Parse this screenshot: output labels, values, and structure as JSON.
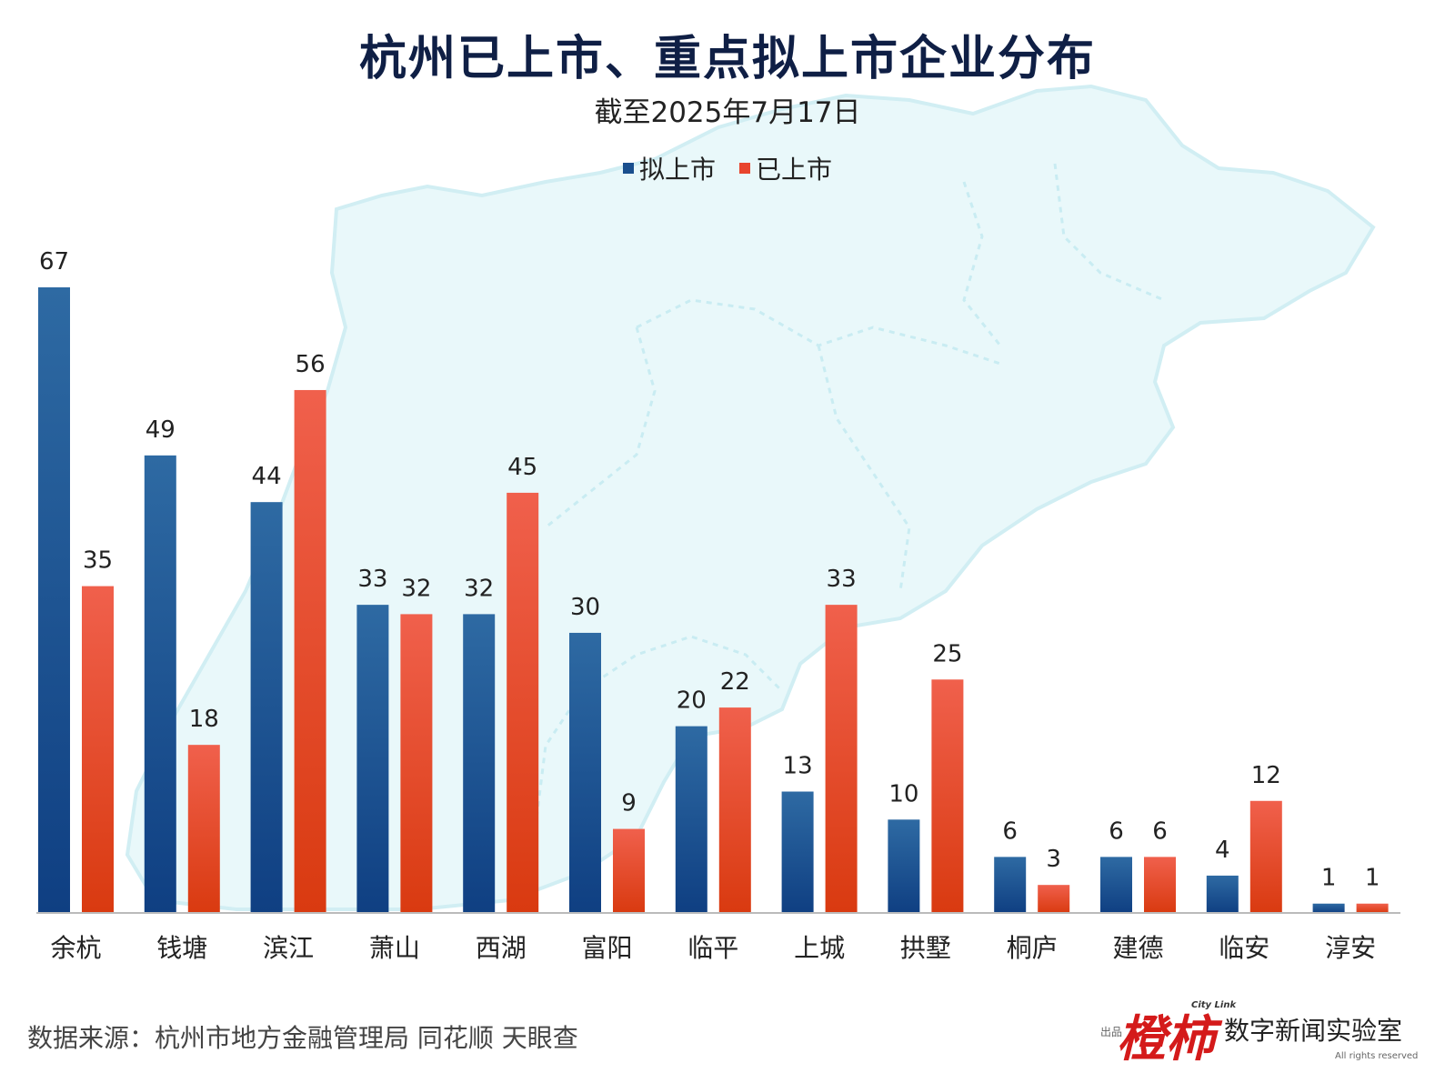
{
  "colors": {
    "planned": "#1a4f8e",
    "listed": "#e8452e",
    "map": "#e6f7fa",
    "map_border": "#c9ecf2",
    "title": "#0f1f45"
  },
  "legend": {
    "planned_label": "拟上市",
    "listed_label": "已上市"
  },
  "source_text": "数据来源：杭州市地方金融管理局 同花顺 天眼查",
  "brand": {
    "publisher_small": "出品",
    "logo_text": "橙柿",
    "citylink": "City Link",
    "lab_name": "数字新闻实验室",
    "rights": "All rights reserved"
  },
  "chart_data": {
    "type": "bar",
    "title": "杭州已上市、重点拟上市企业分布",
    "subtitle": "截至2025年7月17日",
    "categories": [
      "余杭",
      "钱塘",
      "滨江",
      "萧山",
      "西湖",
      "富阳",
      "临平",
      "上城",
      "拱墅",
      "桐庐",
      "建德",
      "临安",
      "淳安"
    ],
    "series": [
      {
        "name": "拟上市",
        "values": [
          67,
          49,
          44,
          33,
          32,
          30,
          20,
          13,
          10,
          6,
          6,
          4,
          1
        ]
      },
      {
        "name": "已上市",
        "values": [
          35,
          18,
          56,
          32,
          45,
          9,
          22,
          33,
          25,
          3,
          6,
          12,
          1
        ]
      }
    ],
    "ylim": [
      0,
      67
    ],
    "xlabel": "",
    "ylabel": "",
    "grid": false,
    "legend_position": "top-center"
  }
}
